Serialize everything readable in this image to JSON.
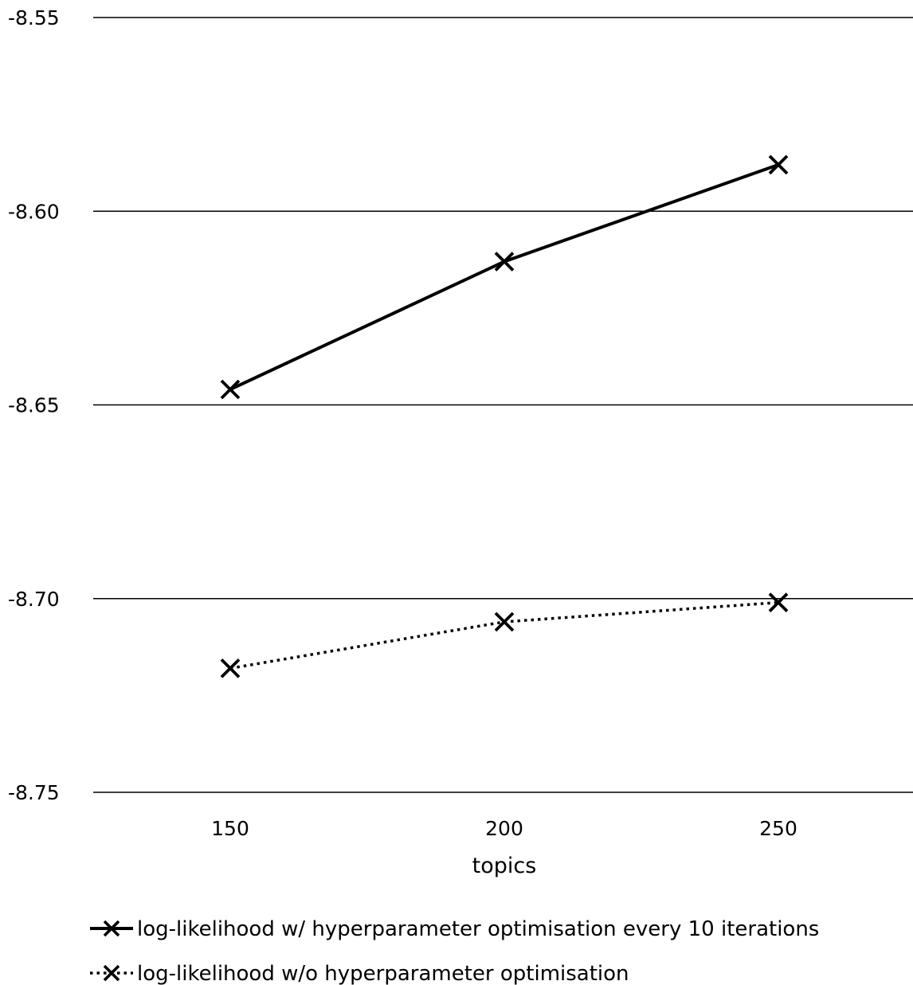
{
  "chart_data": {
    "type": "line",
    "x": [
      150,
      200,
      250
    ],
    "xlabel": "topics",
    "ylabel": "",
    "title": "",
    "ylim": [
      -8.75,
      -8.55
    ],
    "yticks": [
      "-8.55",
      "-8.60",
      "-8.65",
      "-8.70",
      "-8.75"
    ],
    "ytick_values": [
      -8.55,
      -8.6,
      -8.65,
      -8.7,
      -8.75
    ],
    "xticks": [
      "150",
      "200",
      "250"
    ],
    "grid": "horizontal",
    "legend_position": "bottom",
    "marker": "x",
    "series": [
      {
        "name": "log-likelihood w/ hyperparameter optimisation every 10 iterations",
        "values": [
          -8.646,
          -8.613,
          -8.588
        ],
        "line_style": "solid",
        "color": "#000000"
      },
      {
        "name": "log-likelihood w/o hyperparameter optimisation",
        "values": [
          -8.718,
          -8.706,
          -8.701
        ],
        "line_style": "dotted",
        "color": "#000000"
      }
    ]
  }
}
